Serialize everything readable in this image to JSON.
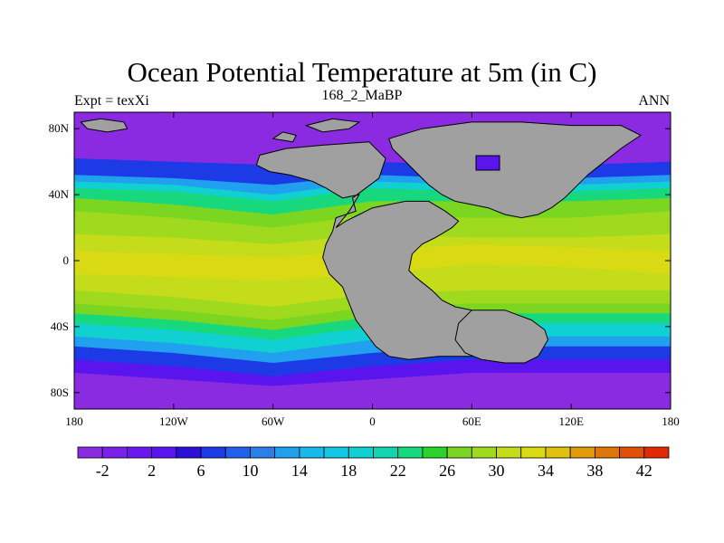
{
  "title": "Ocean Potential Temperature at 5m (in C)",
  "subtitle": "168_2_MaBP",
  "left_label": "Expt = texXi",
  "right_label": "ANN",
  "x_ticks": [
    "180",
    "120W",
    "60W",
    "0",
    "60E",
    "120E",
    "180"
  ],
  "x_tick_values": [
    -180,
    -120,
    -60,
    0,
    60,
    120,
    180
  ],
  "y_ticks": [
    "80N",
    "40N",
    "0",
    "40S",
    "80S"
  ],
  "y_tick_values": [
    80,
    40,
    0,
    -40,
    -80
  ],
  "colorbar": {
    "labels": [
      "-2",
      "2",
      "6",
      "10",
      "14",
      "18",
      "22",
      "26",
      "30",
      "34",
      "38",
      "42"
    ],
    "min": -4,
    "max": 44,
    "step": 2,
    "colors": [
      "#8a2be2",
      "#7a22ea",
      "#6a18ee",
      "#5a14ee",
      "#2c10d6",
      "#1c3ae6",
      "#2060ea",
      "#2a80ea",
      "#20a0ee",
      "#18b8ee",
      "#12c8e6",
      "#10d0d2",
      "#12d4b0",
      "#18d87e",
      "#2ad42c",
      "#7ad620",
      "#a0da1e",
      "#c4dc1a",
      "#dada14",
      "#e0c010",
      "#e09a0c",
      "#e0760a",
      "#e05008",
      "#e02a06"
    ]
  },
  "land_color": "#a0a0a0"
}
